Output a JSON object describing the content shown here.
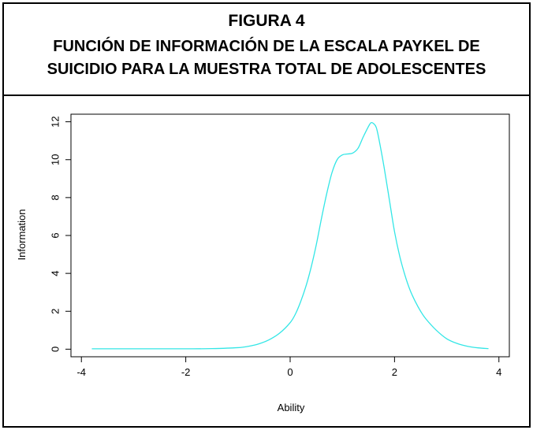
{
  "figure": {
    "label": "FIGURA 4",
    "title_line1": "FUNCIÓN DE INFORMACIÓN DE LA ESCALA PAYKEL DE",
    "title_line2": "SUICIDIO PARA LA MUESTRA TOTAL DE ADOLESCENTES"
  },
  "chart_data": {
    "type": "line",
    "title": "FUNCIÓN DE INFORMACIÓN DE LA ESCALA PAYKEL DE SUICIDIO PARA LA MUESTRA TOTAL DE ADOLESCENTES",
    "xlabel": "Ability",
    "ylabel": "Information",
    "xlim": [
      -4.2,
      4.2
    ],
    "ylim": [
      -0.4,
      12.4
    ],
    "x_ticks": [
      -4,
      -2,
      0,
      2,
      4
    ],
    "y_ticks": [
      0,
      2,
      4,
      6,
      8,
      10,
      12
    ],
    "grid": false,
    "legend": "none",
    "line_color": "#33e6e6",
    "series": [
      {
        "x": [
          -3.8,
          -3.0,
          -2.0,
          -1.5,
          -1.0,
          -0.8,
          -0.6,
          -0.4,
          -0.2,
          0.0,
          0.1,
          0.2,
          0.3,
          0.4,
          0.5,
          0.6,
          0.7,
          0.8,
          0.9,
          1.0,
          1.1,
          1.2,
          1.3,
          1.4,
          1.5,
          1.55,
          1.6,
          1.65,
          1.7,
          1.8,
          1.9,
          2.0,
          2.1,
          2.2,
          2.3,
          2.4,
          2.5,
          2.6,
          2.8,
          3.0,
          3.2,
          3.4,
          3.6,
          3.8
        ],
        "y": [
          0.02,
          0.02,
          0.02,
          0.03,
          0.08,
          0.15,
          0.28,
          0.5,
          0.85,
          1.4,
          1.85,
          2.5,
          3.3,
          4.3,
          5.5,
          6.9,
          8.2,
          9.3,
          10.0,
          10.25,
          10.3,
          10.35,
          10.6,
          11.2,
          11.75,
          11.95,
          11.9,
          11.7,
          11.1,
          9.6,
          7.9,
          6.2,
          4.9,
          3.9,
          3.1,
          2.5,
          2.0,
          1.6,
          1.0,
          0.55,
          0.3,
          0.15,
          0.07,
          0.03
        ]
      }
    ]
  }
}
